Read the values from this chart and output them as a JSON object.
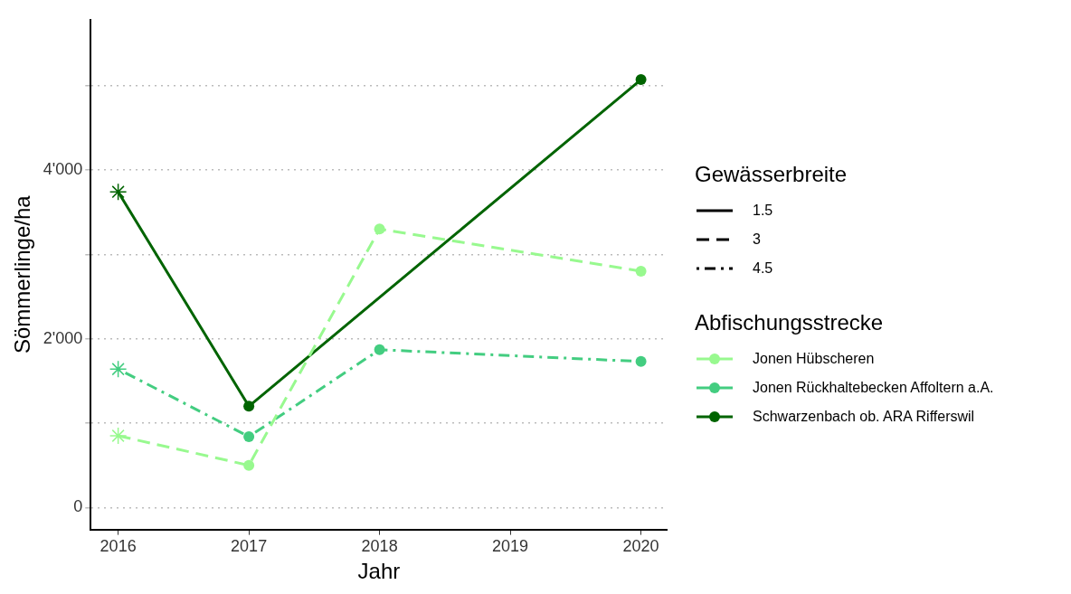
{
  "chart_data": {
    "type": "line",
    "xlabel": "Jahr",
    "ylabel": "Sömmerlinge/ha",
    "xlim": [
      2015.79,
      2020.2
    ],
    "xticks": [
      2016,
      2017,
      2018,
      2019,
      2020
    ],
    "ylim": [
      -260,
      5780
    ],
    "yticks": [
      0,
      {
        "value": 1000,
        "label": null
      },
      {
        "value": 2000,
        "label": "2'000"
      },
      {
        "value": 3000,
        "label": null
      },
      {
        "value": 4000,
        "label": "4'000"
      },
      {
        "value": 5000,
        "label": null
      }
    ],
    "grid": "y",
    "legend": "right",
    "legend_title": [
      "Gewässerbreite",
      "Abfischungsstrecke"
    ],
    "series": [
      {
        "name": "1.5",
        "color": "#000000",
        "line_style": "solid"
      },
      {
        "name": "3",
        "color": "#000000",
        "line_style": "dashed"
      },
      {
        "name": "4.5",
        "color": "#000000",
        "line_style": "dashdot"
      },
      {
        "name": "Jonen Hübscheren",
        "color": "#98f98f",
        "line_style": "dashed",
        "x": [
          2016,
          2017,
          2018,
          2020
        ],
        "values": [
          850,
          500,
          3300,
          2800
        ],
        "marker": [
          "star",
          "circle",
          "circle",
          "circle"
        ]
      },
      {
        "name": "Jonen Rückhaltebecken Affoltern a.A.",
        "color": "#43cd80",
        "line_style": "dashdot",
        "x": [
          2016,
          2017,
          2018,
          2020
        ],
        "values": [
          1640,
          840,
          1870,
          1730
        ],
        "marker": [
          "star",
          "circle",
          "circle",
          "circle"
        ]
      },
      {
        "name": "Schwarzenbach ob. ARA Rifferswil",
        "color": "#006400",
        "line_style": "solid",
        "x": [
          2016,
          2017,
          2020
        ],
        "values": [
          3740,
          1200,
          5070
        ],
        "marker": [
          "star",
          "circle",
          "circle"
        ]
      }
    ]
  }
}
